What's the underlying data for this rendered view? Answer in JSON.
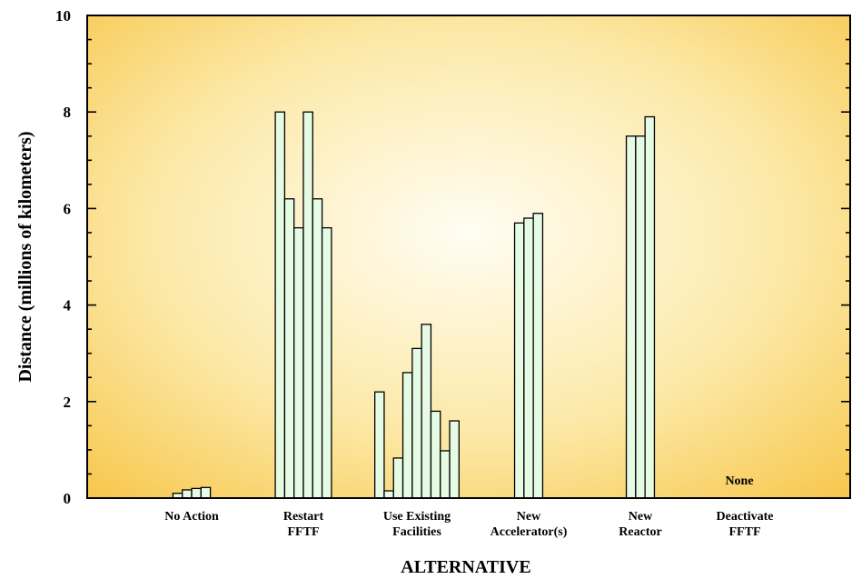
{
  "colors": {
    "bar_fill": "#e6fbe4",
    "bar_stroke": "#000000",
    "plot_center": "#fffdf3",
    "plot_edge": "#f7c64a",
    "axis": "#000000"
  },
  "chart_data": {
    "type": "bar",
    "title": "",
    "xlabel": "ALTERNATIVE",
    "ylabel": "Distance (millions of kilometers)",
    "ylim": [
      0,
      10
    ],
    "y_ticks": [
      "0",
      "2",
      "4",
      "6",
      "8",
      "10"
    ],
    "grid": false,
    "legend": "none",
    "categories": [
      {
        "label_lines": [
          "No Action"
        ],
        "values": [
          0.1,
          0.17,
          0.2,
          0.22
        ]
      },
      {
        "label_lines": [
          "Restart",
          "FFTF"
        ],
        "values": [
          8.0,
          6.2,
          5.6,
          8.0,
          6.2,
          5.6
        ]
      },
      {
        "label_lines": [
          "Use Existing",
          "Facilities"
        ],
        "values": [
          2.2,
          0.15,
          0.83,
          2.6,
          3.1,
          3.6,
          1.8,
          0.98,
          1.6
        ]
      },
      {
        "label_lines": [
          "New",
          "Accelerator(s)"
        ],
        "values": [
          5.7,
          5.8,
          5.9
        ]
      },
      {
        "label_lines": [
          "New",
          "Reactor"
        ],
        "values": [
          7.5,
          7.5,
          7.9
        ]
      },
      {
        "label_lines": [
          "Deactivate",
          "FFTF"
        ],
        "values": []
      }
    ],
    "annotations": [
      {
        "text": "None",
        "category_index": 5,
        "value": 0.3
      }
    ]
  }
}
